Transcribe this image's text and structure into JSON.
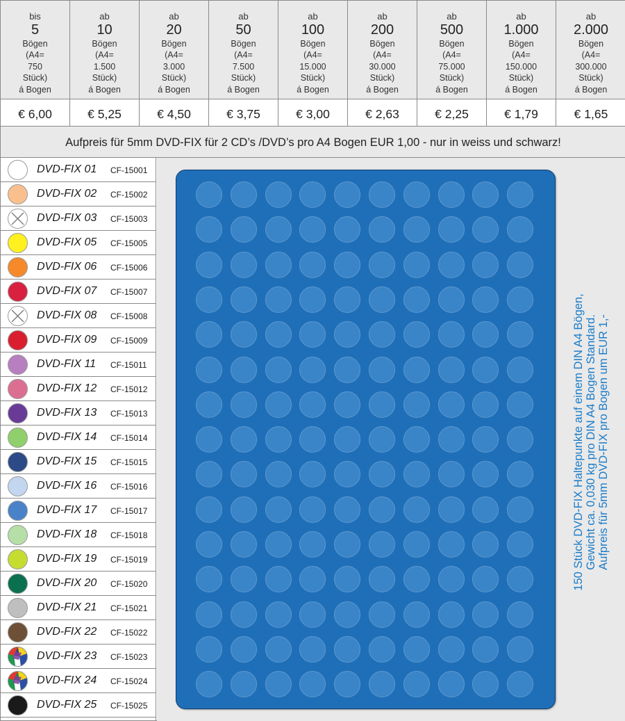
{
  "price_tiers": [
    {
      "pre": "bis",
      "qty": "5",
      "desc": "Bögen\n(A4=\n750\nStück)\ná Bogen",
      "price": "€ 6,00"
    },
    {
      "pre": "ab",
      "qty": "10",
      "desc": "Bögen\n(A4=\n1.500\nStück)\ná Bogen",
      "price": "€ 5,25"
    },
    {
      "pre": "ab",
      "qty": "20",
      "desc": "Bögen\n(A4=\n3.000\nStück)\ná Bogen",
      "price": "€ 4,50"
    },
    {
      "pre": "ab",
      "qty": "50",
      "desc": "Bögen\n(A4=\n7.500\nStück)\ná Bogen",
      "price": "€ 3,75"
    },
    {
      "pre": "ab",
      "qty": "100",
      "desc": "Bögen\n(A4=\n15.000\nStück)\ná Bogen",
      "price": "€ 3,00"
    },
    {
      "pre": "ab",
      "qty": "200",
      "desc": "Bögen\n(A4=\n30.000\nStück)\ná Bogen",
      "price": "€ 2,63"
    },
    {
      "pre": "ab",
      "qty": "500",
      "desc": "Bögen\n(A4=\n75.000\nStück)\ná Bogen",
      "price": "€ 2,25"
    },
    {
      "pre": "ab",
      "qty": "1.000",
      "desc": "Bögen\n(A4=\n150.000\nStück)\ná Bogen",
      "price": "€ 1,79"
    },
    {
      "pre": "ab",
      "qty": "2.000",
      "desc": "Bögen\n(A4=\n300.000\nStück)\ná Bogen",
      "price": "€ 1,65"
    }
  ],
  "surcharge_text": "Aufpreis für 5mm DVD-FIX für 2 CD’s /DVD’s pro A4 Bogen EUR 1,00 - nur in weiss und schwarz!",
  "colors": [
    {
      "name": "DVD-FIX 01",
      "code": "CF-15001",
      "color": "#ffffff",
      "pattern": "plain",
      "icon": "white-dot-icon"
    },
    {
      "name": "DVD-FIX 02",
      "code": "CF-15002",
      "color": "#f9c08e",
      "pattern": "plain",
      "icon": "peach-dot-icon"
    },
    {
      "name": "DVD-FIX 03",
      "code": "CF-15003",
      "color": "#ffffff",
      "pattern": "cross",
      "icon": "transparent-dot-icon"
    },
    {
      "name": "DVD-FIX 05",
      "code": "CF-15005",
      "color": "#fff01f",
      "pattern": "plain",
      "icon": "yellow-dot-icon"
    },
    {
      "name": "DVD-FIX 06",
      "code": "CF-15006",
      "color": "#f6892a",
      "pattern": "plain",
      "icon": "orange-dot-icon"
    },
    {
      "name": "DVD-FIX 07",
      "code": "CF-15007",
      "color": "#d8203f",
      "pattern": "plain",
      "icon": "red-dot-icon"
    },
    {
      "name": "DVD-FIX 08",
      "code": "CF-15008",
      "color": "#ffffff",
      "pattern": "cross",
      "icon": "transparent-dot-icon"
    },
    {
      "name": "DVD-FIX 09",
      "code": "CF-15009",
      "color": "#d91f2f",
      "pattern": "plain",
      "icon": "red-dot-icon"
    },
    {
      "name": "DVD-FIX 11",
      "code": "CF-15011",
      "color": "#b77fbf",
      "pattern": "plain",
      "icon": "lilac-dot-icon"
    },
    {
      "name": "DVD-FIX 12",
      "code": "CF-15012",
      "color": "#dc6f91",
      "pattern": "plain",
      "icon": "pink-dot-icon"
    },
    {
      "name": "DVD-FIX 13",
      "code": "CF-15013",
      "color": "#6a3a97",
      "pattern": "plain",
      "icon": "purple-dot-icon"
    },
    {
      "name": "DVD-FIX 14",
      "code": "CF-15014",
      "color": "#8fcf6c",
      "pattern": "plain",
      "icon": "light-green-dot-icon"
    },
    {
      "name": "DVD-FIX 15",
      "code": "CF-15015",
      "color": "#2b4a86",
      "pattern": "plain",
      "icon": "navy-dot-icon"
    },
    {
      "name": "DVD-FIX 16",
      "code": "CF-15016",
      "color": "#c3d6f0",
      "pattern": "plain",
      "icon": "light-blue-dot-icon"
    },
    {
      "name": "DVD-FIX 17",
      "code": "CF-15017",
      "color": "#4a82c9",
      "pattern": "plain",
      "icon": "blue-dot-icon"
    },
    {
      "name": "DVD-FIX 18",
      "code": "CF-15018",
      "color": "#b5dfa7",
      "pattern": "plain",
      "icon": "mint-dot-icon"
    },
    {
      "name": "DVD-FIX 19",
      "code": "CF-15019",
      "color": "#c6dc31",
      "pattern": "plain",
      "icon": "lime-dot-icon"
    },
    {
      "name": "DVD-FIX 20",
      "code": "CF-15020",
      "color": "#0b7050",
      "pattern": "plain",
      "icon": "dark-green-dot-icon"
    },
    {
      "name": "DVD-FIX 21",
      "code": "CF-15021",
      "color": "#bfbfbf",
      "pattern": "plain",
      "icon": "grey-dot-icon"
    },
    {
      "name": "DVD-FIX 22",
      "code": "CF-15022",
      "color": "#6e5036",
      "pattern": "plain",
      "icon": "brown-dot-icon"
    },
    {
      "name": "DVD-FIX 23",
      "code": "CF-15023",
      "color": "#23408c",
      "pattern": "multi",
      "icon": "multicolor-dot-icon"
    },
    {
      "name": "DVD-FIX 24",
      "code": "CF-15024",
      "color": "#17874a",
      "pattern": "multi",
      "icon": "multicolor-dot-icon"
    },
    {
      "name": "DVD-FIX 25",
      "code": "CF-15025",
      "color": "#1a1a1a",
      "pattern": "plain",
      "icon": "black-dot-icon"
    }
  ],
  "sheet": {
    "columns": 10,
    "rows": 15,
    "sheet_color": "#1f6fb8",
    "dot_color": "#3a84c8"
  },
  "side_note": [
    "150 Stück DVD-FIX Haltepunkte auf einem DIN A4 Bögen,",
    "Gewicht ca. 0,030 kg pro DIN A4 Bogen Standard.",
    "Aufpreis für 5mm DVD-FIX pro Bogen um EUR 1,-"
  ]
}
